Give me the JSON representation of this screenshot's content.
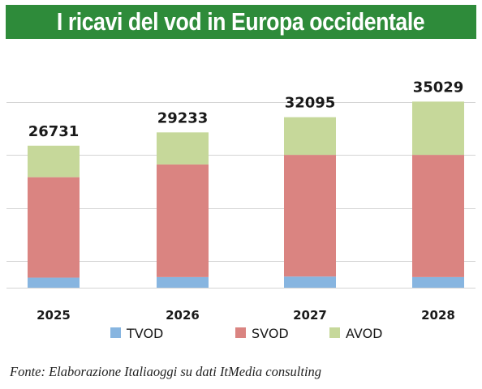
{
  "title": "I ricavi del vod in Europa occidentale",
  "source": "Fonte: Elaborazione Italiaoggi su dati ItMedia consulting",
  "colors": {
    "title_bg": "#2e8b3a",
    "tvod": "#87b5e0",
    "svod": "#da8481",
    "avod": "#c6d89a",
    "grid": "#d4d4d4"
  },
  "chart_data": {
    "type": "bar",
    "stacked": true,
    "title": "I ricavi del vod in Europa occidentale",
    "categories": [
      "2025",
      "2026",
      "2027",
      "2028"
    ],
    "totals": [
      "26731",
      "29233",
      "32095",
      "35029"
    ],
    "series": [
      {
        "name": "TVOD",
        "color": "#87b5e0",
        "values": [
          1900,
          2000,
          2100,
          2000
        ]
      },
      {
        "name": "SVOD",
        "color": "#da8481",
        "values": [
          18900,
          21200,
          22900,
          23000
        ]
      },
      {
        "name": "AVOD",
        "color": "#c6d89a",
        "values": [
          5931,
          6033,
          7095,
          10029
        ]
      }
    ],
    "ylim": [
      0,
      36000
    ],
    "gridlines": [
      0,
      5000,
      15000,
      25000,
      35000
    ],
    "legend": "bottom",
    "xlabel": "",
    "ylabel": ""
  }
}
